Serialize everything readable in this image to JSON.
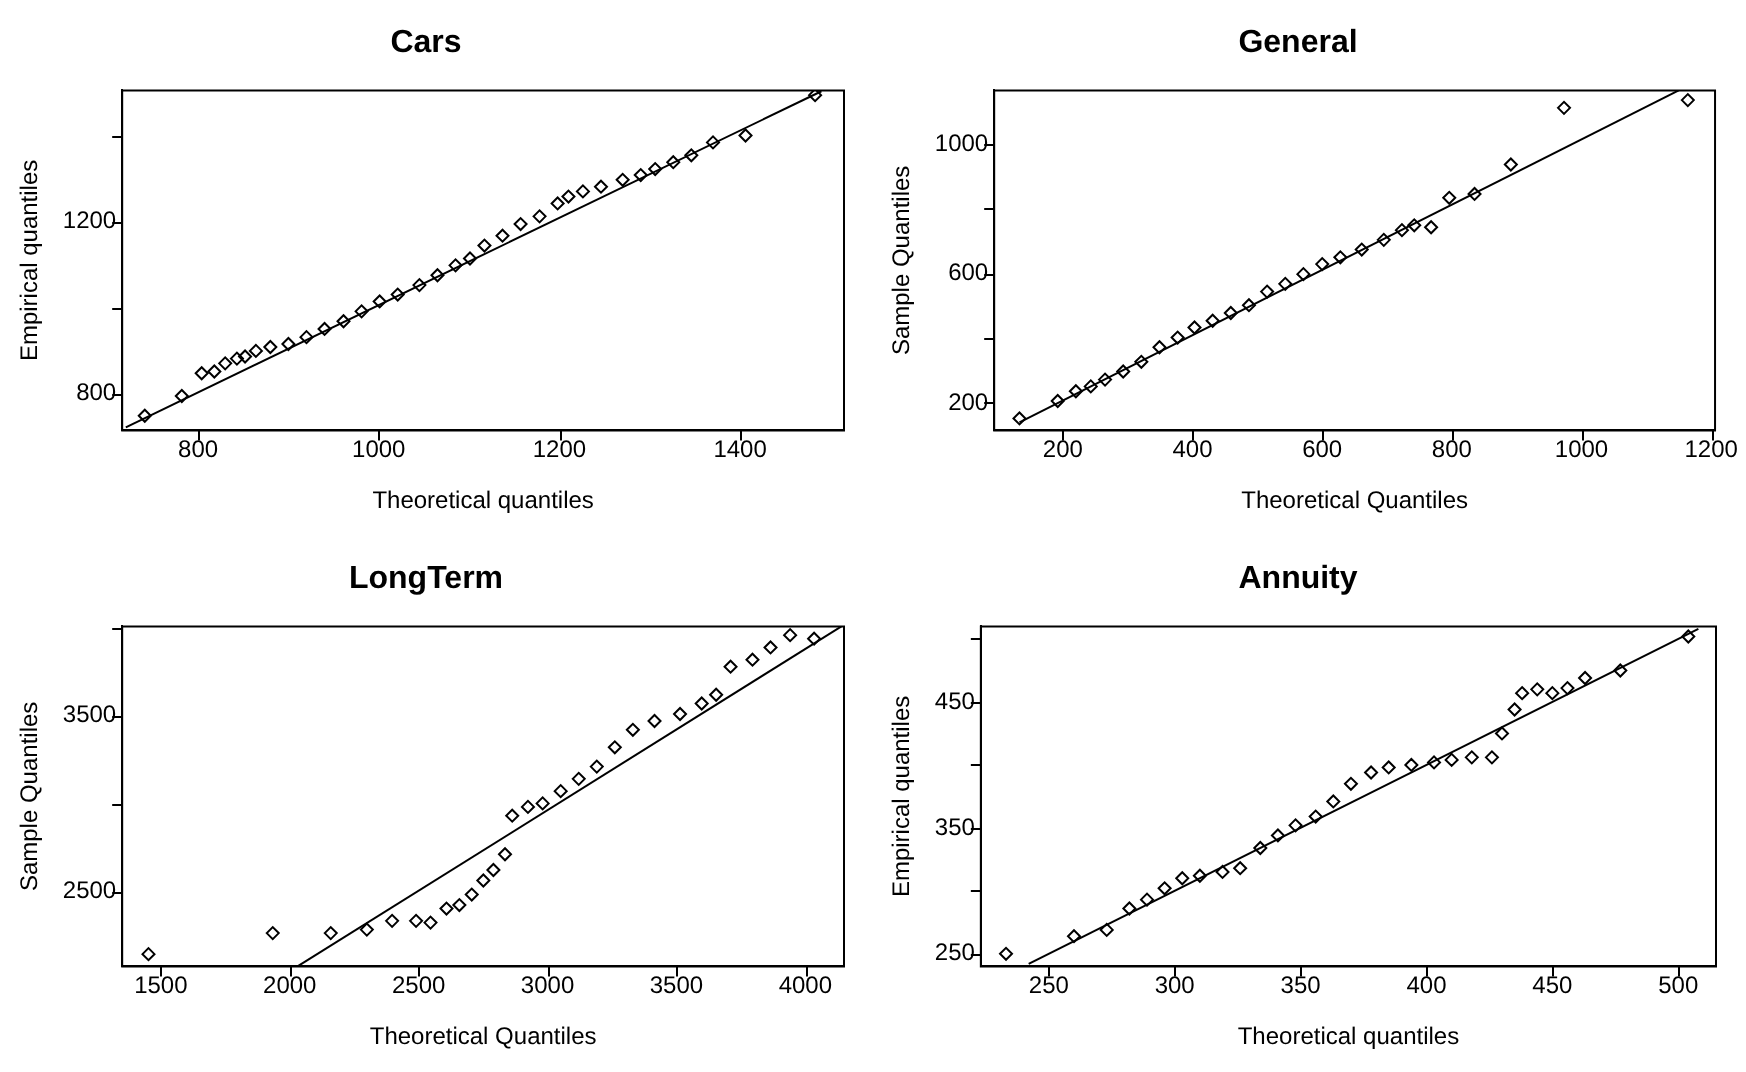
{
  "chart_data": [
    {
      "type": "scatter",
      "title": "Cars",
      "xlabel": "Theoretical quantiles",
      "ylabel": "Empirical quantiles",
      "xlim": [
        716,
        1515
      ],
      "ylim": [
        713,
        1504
      ],
      "xticks": [
        800,
        1000,
        1200,
        1400
      ],
      "yticks": [
        800,
        {
          "value": 1000,
          "label": null
        },
        1200,
        {
          "value": 1400,
          "label": null
        }
      ],
      "marker": "diamond",
      "legend": false,
      "grid": false,
      "series": [
        {
          "type": "scatter",
          "color": "#000000",
          "x": [
            741,
            782,
            804,
            818,
            830,
            843,
            852,
            864,
            880,
            900,
            920,
            940,
            961,
            981,
            1001,
            1021,
            1045,
            1065,
            1085,
            1101,
            1117,
            1137,
            1157,
            1178,
            1198,
            1210,
            1226,
            1246,
            1270,
            1290,
            1306,
            1326,
            1346,
            1370,
            1406,
            1483
          ],
          "values": [
            747,
            793,
            846,
            850,
            869,
            880,
            885,
            898,
            907,
            914,
            930,
            949,
            967,
            990,
            1013,
            1029,
            1051,
            1074,
            1097,
            1113,
            1143,
            1166,
            1193,
            1211,
            1241,
            1257,
            1269,
            1280,
            1296,
            1307,
            1321,
            1337,
            1353,
            1383,
            1399,
            1493
          ]
        },
        {
          "type": "line",
          "color": "#000000",
          "marker": "none",
          "x": [
            720,
            1490
          ],
          "values": [
            720,
            1502
          ]
        }
      ]
    },
    {
      "type": "scatter",
      "title": "General",
      "xlabel": "Theoretical Quantiles",
      "ylabel": "Sample Quantiles",
      "xlim": [
        94,
        1206
      ],
      "ylim": [
        115,
        1166
      ],
      "xticks": [
        200,
        400,
        600,
        800,
        1000,
        1200
      ],
      "yticks": [
        200,
        {
          "value": 400,
          "label": null
        },
        600,
        {
          "value": 800,
          "label": null
        },
        1000
      ],
      "marker": "diamond",
      "legend": false,
      "grid": false,
      "series": [
        {
          "type": "scatter",
          "color": "#000000",
          "x": [
            133,
            192,
            220,
            243,
            265,
            293,
            321,
            349,
            377,
            403,
            431,
            459,
            487,
            515,
            543,
            571,
            600,
            628,
            661,
            695,
            723,
            742,
            768,
            796,
            835,
            891,
            973,
            1164
          ],
          "values": [
            152,
            206,
            236,
            251,
            272,
            297,
            327,
            372,
            402,
            433,
            454,
            478,
            502,
            544,
            568,
            598,
            629,
            650,
            674,
            704,
            734,
            749,
            743,
            834,
            846,
            937,
            1112,
            1136
          ]
        },
        {
          "type": "line",
          "color": "#000000",
          "marker": "none",
          "x": [
            133,
            1150
          ],
          "values": [
            140,
            1166
          ]
        }
      ]
    },
    {
      "type": "scatter",
      "title": "LongTerm",
      "xlabel": "Theoretical Quantiles",
      "ylabel": "Sample Quantiles",
      "xlim": [
        1350,
        4150
      ],
      "ylim": [
        2070,
        4010
      ],
      "xticks": [
        1500,
        2000,
        2500,
        3000,
        3500,
        4000
      ],
      "yticks": [
        2500,
        {
          "value": 3000,
          "label": null
        },
        3500,
        {
          "value": 4000,
          "label": null
        }
      ],
      "marker": "diamond",
      "legend": false,
      "grid": false,
      "series": [
        {
          "type": "scatter",
          "color": "#000000",
          "x": [
            1452,
            1934,
            2159,
            2299,
            2397,
            2490,
            2546,
            2608,
            2658,
            2706,
            2751,
            2790,
            2835,
            2863,
            2924,
            2981,
            3051,
            3121,
            3191,
            3261,
            3331,
            3415,
            3514,
            3598,
            3654,
            3710,
            3795,
            3865,
            3941,
            4034
          ],
          "values": [
            2140,
            2260,
            2260,
            2280,
            2330,
            2330,
            2320,
            2400,
            2420,
            2480,
            2560,
            2620,
            2710,
            2930,
            2980,
            3000,
            3070,
            3140,
            3210,
            3320,
            3420,
            3470,
            3510,
            3570,
            3620,
            3780,
            3820,
            3890,
            3960,
            3940
          ]
        },
        {
          "type": "line",
          "color": "#000000",
          "marker": "none",
          "x": [
            2030,
            4140
          ],
          "values": [
            2070,
            4010
          ]
        }
      ]
    },
    {
      "type": "scatter",
      "title": "Annuity",
      "xlabel": "Theoretical quantiles",
      "ylabel": "Empirical quantiles",
      "xlim": [
        223,
        515
      ],
      "ylim": [
        240,
        510
      ],
      "xticks": [
        250,
        300,
        350,
        400,
        450,
        500
      ],
      "yticks": [
        250,
        {
          "value": 300,
          "label": null
        },
        350,
        {
          "value": 400,
          "label": null
        },
        450,
        {
          "value": 500,
          "label": null
        }
      ],
      "marker": "diamond",
      "legend": false,
      "grid": false,
      "series": [
        {
          "type": "scatter",
          "color": "#000000",
          "x": [
            233,
            260,
            273,
            282,
            289,
            296,
            303,
            310,
            319,
            326,
            334,
            341,
            348,
            356,
            363,
            370,
            378,
            385,
            394,
            403,
            410,
            418,
            426,
            430,
            435,
            438,
            444,
            450,
            456,
            463,
            477,
            504
          ],
          "values": [
            250,
            264,
            269,
            286,
            293,
            302,
            310,
            312,
            315,
            318,
            334,
            344,
            352,
            359,
            371,
            385,
            394,
            398,
            400,
            402,
            404,
            406,
            406,
            425,
            444,
            457,
            460,
            457,
            461,
            469,
            475,
            502
          ]
        },
        {
          "type": "line",
          "color": "#000000",
          "marker": "none",
          "x": [
            242,
            508
          ],
          "values": [
            242,
            508
          ]
        }
      ]
    }
  ]
}
